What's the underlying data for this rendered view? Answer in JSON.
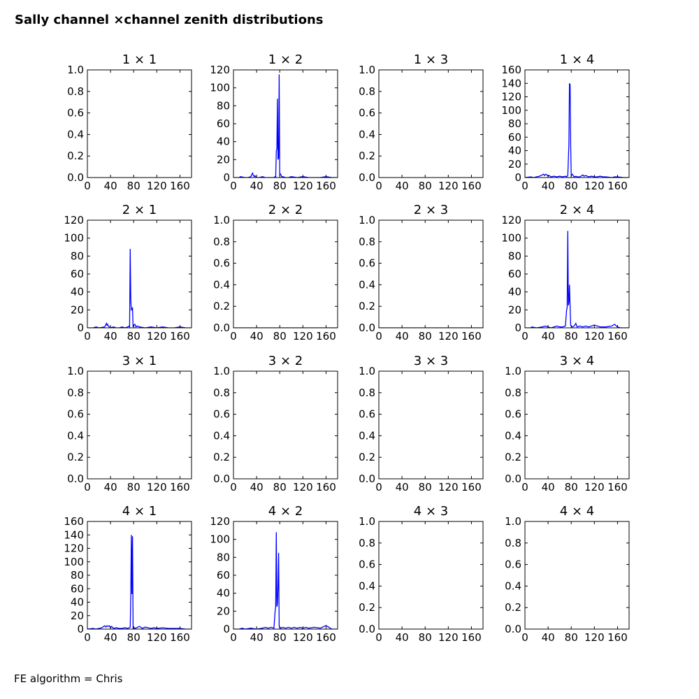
{
  "suptitle": "Sally channel ×channel zenith distributions",
  "footer": "FE algorithm = Chris",
  "colors": {
    "line": "#0000ff",
    "axes": "#000000",
    "background": "#ffffff"
  },
  "chart_data": [
    {
      "type": "line",
      "title": "1  × 1",
      "xlim": [
        0,
        180
      ],
      "ylim": [
        0,
        1.0
      ],
      "xticks": [
        "0",
        "40",
        "80",
        "120",
        "160"
      ],
      "yticks": [
        "0.0",
        "0.2",
        "0.4",
        "0.6",
        "0.8",
        "1.0"
      ],
      "x": [],
      "y": []
    },
    {
      "type": "line",
      "title": "1  × 2",
      "xlim": [
        0,
        180
      ],
      "ylim": [
        0,
        120
      ],
      "xticks": [
        "0",
        "40",
        "80",
        "120",
        "160"
      ],
      "yticks": [
        "0",
        "20",
        "40",
        "60",
        "80",
        "100",
        "120"
      ],
      "x": [
        0,
        10,
        12,
        20,
        25,
        30,
        33,
        34,
        36,
        37,
        40,
        45,
        50,
        55,
        60,
        65,
        70,
        72,
        73,
        74,
        75,
        76,
        77,
        78,
        79,
        80,
        81,
        82,
        84,
        85,
        90,
        95,
        100,
        110,
        120,
        130,
        140,
        150,
        160,
        170,
        175,
        180
      ],
      "y": [
        0,
        0,
        1,
        0,
        0,
        1,
        5,
        3,
        1,
        2,
        0,
        0,
        1,
        0,
        0,
        0,
        0,
        1,
        0,
        30,
        32,
        88,
        20,
        22,
        115,
        3,
        4,
        3,
        0,
        1,
        0,
        0,
        1,
        0,
        1,
        0,
        0,
        0,
        1,
        0,
        0,
        0
      ]
    },
    {
      "type": "line",
      "title": "1  × 3",
      "xlim": [
        0,
        180
      ],
      "ylim": [
        0,
        1.0
      ],
      "xticks": [
        "0",
        "40",
        "80",
        "120",
        "160"
      ],
      "yticks": [
        "0.0",
        "0.2",
        "0.4",
        "0.6",
        "0.8",
        "1.0"
      ],
      "x": [],
      "y": []
    },
    {
      "type": "line",
      "title": "1  × 4",
      "xlim": [
        0,
        180
      ],
      "ylim": [
        0,
        160
      ],
      "xticks": [
        "0",
        "40",
        "80",
        "120",
        "160"
      ],
      "yticks": [
        "0",
        "20",
        "40",
        "60",
        "80",
        "100",
        "120",
        "140",
        "160"
      ],
      "x": [
        0,
        10,
        15,
        20,
        25,
        30,
        32,
        34,
        36,
        38,
        40,
        42,
        45,
        50,
        55,
        60,
        65,
        70,
        72,
        74,
        76,
        77,
        78,
        79,
        80,
        82,
        84,
        86,
        88,
        90,
        95,
        100,
        102,
        105,
        110,
        115,
        120,
        125,
        130,
        135,
        140,
        150,
        155,
        160,
        170,
        175,
        180
      ],
      "y": [
        0,
        1,
        0,
        1,
        2,
        4,
        5,
        3,
        5,
        4,
        2,
        3,
        1,
        2,
        1,
        2,
        1,
        2,
        1,
        3,
        50,
        140,
        138,
        50,
        3,
        5,
        2,
        1,
        2,
        1,
        1,
        4,
        2,
        3,
        1,
        2,
        1,
        1,
        2,
        1,
        1,
        0,
        1,
        1,
        0,
        0,
        0
      ]
    },
    {
      "type": "line",
      "title": "2  × 1",
      "xlim": [
        0,
        180
      ],
      "ylim": [
        0,
        120
      ],
      "xticks": [
        "0",
        "40",
        "80",
        "120",
        "160"
      ],
      "yticks": [
        "0",
        "20",
        "40",
        "60",
        "80",
        "100",
        "120"
      ],
      "x": [
        0,
        10,
        15,
        20,
        30,
        33,
        34,
        35,
        36,
        38,
        40,
        45,
        50,
        55,
        60,
        65,
        70,
        72,
        73,
        74,
        75,
        76,
        77,
        78,
        79,
        80,
        82,
        84,
        86,
        90,
        100,
        110,
        120,
        130,
        140,
        150,
        160,
        170,
        180
      ],
      "y": [
        0,
        0,
        1,
        0,
        1,
        5,
        3,
        4,
        2,
        1,
        0,
        1,
        0,
        0,
        1,
        0,
        1,
        2,
        1,
        88,
        32,
        20,
        21,
        22,
        1,
        3,
        4,
        1,
        2,
        1,
        0,
        1,
        0,
        1,
        0,
        0,
        1,
        0,
        0
      ]
    },
    {
      "type": "line",
      "title": "2  × 2",
      "xlim": [
        0,
        180
      ],
      "ylim": [
        0,
        1.0
      ],
      "xticks": [
        "0",
        "40",
        "80",
        "120",
        "160"
      ],
      "yticks": [
        "0.0",
        "0.2",
        "0.4",
        "0.6",
        "0.8",
        "1.0"
      ],
      "x": [
        0,
        180
      ],
      "y": [
        0,
        0
      ]
    },
    {
      "type": "line",
      "title": "2  × 3",
      "xlim": [
        0,
        180
      ],
      "ylim": [
        0,
        1.0
      ],
      "xticks": [
        "0",
        "40",
        "80",
        "120",
        "160"
      ],
      "yticks": [
        "0.0",
        "0.2",
        "0.4",
        "0.6",
        "0.8",
        "1.0"
      ],
      "x": [
        0,
        180
      ],
      "y": [
        0,
        0
      ]
    },
    {
      "type": "line",
      "title": "2  × 4",
      "xlim": [
        0,
        180
      ],
      "ylim": [
        0,
        120
      ],
      "xticks": [
        "0",
        "40",
        "80",
        "120",
        "160"
      ],
      "yticks": [
        "0",
        "20",
        "40",
        "60",
        "80",
        "100",
        "120"
      ],
      "x": [
        0,
        10,
        12,
        20,
        30,
        35,
        40,
        45,
        50,
        55,
        60,
        65,
        70,
        72,
        73,
        74,
        75,
        76,
        77,
        78,
        79,
        80,
        82,
        85,
        88,
        90,
        95,
        100,
        105,
        110,
        115,
        120,
        125,
        130,
        140,
        150,
        155,
        158,
        160,
        165,
        170,
        180
      ],
      "y": [
        0,
        0,
        1,
        0,
        1,
        2,
        1,
        0,
        1,
        2,
        1,
        1,
        2,
        20,
        22,
        108,
        25,
        28,
        48,
        24,
        3,
        2,
        1,
        2,
        5,
        1,
        2,
        1,
        2,
        1,
        2,
        3,
        2,
        1,
        1,
        2,
        4,
        2,
        1,
        0,
        0,
        0
      ]
    },
    {
      "type": "line",
      "title": "3  × 1",
      "xlim": [
        0,
        180
      ],
      "ylim": [
        0,
        1.0
      ],
      "xticks": [
        "0",
        "40",
        "80",
        "120",
        "160"
      ],
      "yticks": [
        "0.0",
        "0.2",
        "0.4",
        "0.6",
        "0.8",
        "1.0"
      ],
      "x": [],
      "y": []
    },
    {
      "type": "line",
      "title": "3  × 2",
      "xlim": [
        0,
        180
      ],
      "ylim": [
        0,
        1.0
      ],
      "xticks": [
        "0",
        "40",
        "80",
        "120",
        "160"
      ],
      "yticks": [
        "0.0",
        "0.2",
        "0.4",
        "0.6",
        "0.8",
        "1.0"
      ],
      "x": [],
      "y": []
    },
    {
      "type": "line",
      "title": "3  × 3",
      "xlim": [
        0,
        180
      ],
      "ylim": [
        0,
        1.0
      ],
      "xticks": [
        "0",
        "40",
        "80",
        "120",
        "160"
      ],
      "yticks": [
        "0.0",
        "0.2",
        "0.4",
        "0.6",
        "0.8",
        "1.0"
      ],
      "x": [],
      "y": []
    },
    {
      "type": "line",
      "title": "3  × 4",
      "xlim": [
        0,
        180
      ],
      "ylim": [
        0,
        1.0
      ],
      "xticks": [
        "0",
        "40",
        "80",
        "120",
        "160"
      ],
      "yticks": [
        "0.0",
        "0.2",
        "0.4",
        "0.6",
        "0.8",
        "1.0"
      ],
      "x": [],
      "y": []
    },
    {
      "type": "line",
      "title": "4  × 1",
      "xlim": [
        0,
        180
      ],
      "ylim": [
        0,
        160
      ],
      "xticks": [
        "0",
        "40",
        "80",
        "120",
        "160"
      ],
      "yticks": [
        "0",
        "20",
        "40",
        "60",
        "80",
        "100",
        "120",
        "140",
        "160"
      ],
      "x": [
        0,
        10,
        15,
        20,
        25,
        30,
        32,
        34,
        36,
        38,
        40,
        42,
        45,
        50,
        55,
        60,
        65,
        70,
        72,
        74,
        75,
        76,
        77,
        78,
        79,
        80,
        82,
        85,
        90,
        95,
        100,
        105,
        110,
        115,
        120,
        130,
        140,
        150,
        160,
        170,
        180
      ],
      "y": [
        0,
        1,
        0,
        1,
        2,
        5,
        3,
        5,
        4,
        5,
        2,
        4,
        1,
        2,
        1,
        1,
        2,
        1,
        2,
        3,
        50,
        140,
        52,
        138,
        2,
        3,
        1,
        2,
        4,
        1,
        3,
        2,
        1,
        2,
        1,
        2,
        1,
        1,
        1,
        0,
        0
      ]
    },
    {
      "type": "line",
      "title": "4  × 2",
      "xlim": [
        0,
        180
      ],
      "ylim": [
        0,
        120
      ],
      "xticks": [
        "0",
        "40",
        "80",
        "120",
        "160"
      ],
      "yticks": [
        "0",
        "20",
        "40",
        "60",
        "80",
        "100",
        "120"
      ],
      "x": [
        0,
        10,
        15,
        20,
        30,
        40,
        50,
        55,
        60,
        65,
        70,
        72,
        73,
        74,
        75,
        76,
        77,
        78,
        79,
        80,
        82,
        85,
        90,
        95,
        100,
        105,
        110,
        115,
        120,
        125,
        130,
        140,
        150,
        160,
        165,
        170,
        180
      ],
      "y": [
        0,
        0,
        1,
        0,
        1,
        0,
        1,
        2,
        1,
        2,
        1,
        20,
        25,
        108,
        25,
        28,
        48,
        85,
        3,
        2,
        1,
        2,
        1,
        2,
        1,
        2,
        1,
        2,
        1,
        2,
        1,
        2,
        1,
        4,
        2,
        0,
        0
      ]
    },
    {
      "type": "line",
      "title": "4  × 3",
      "xlim": [
        0,
        180
      ],
      "ylim": [
        0,
        1.0
      ],
      "xticks": [
        "0",
        "40",
        "80",
        "120",
        "160"
      ],
      "yticks": [
        "0.0",
        "0.2",
        "0.4",
        "0.6",
        "0.8",
        "1.0"
      ],
      "x": [],
      "y": []
    },
    {
      "type": "line",
      "title": "4  × 4",
      "xlim": [
        0,
        180
      ],
      "ylim": [
        0,
        1.0
      ],
      "xticks": [
        "0",
        "40",
        "80",
        "120",
        "160"
      ],
      "yticks": [
        "0.0",
        "0.2",
        "0.4",
        "0.6",
        "0.8",
        "1.0"
      ],
      "x": [],
      "y": []
    }
  ]
}
